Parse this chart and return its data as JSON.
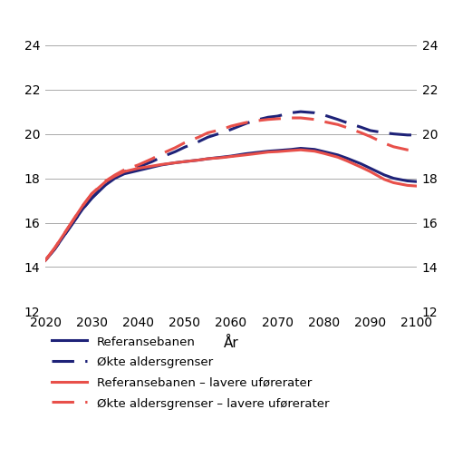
{
  "xlabel": "År",
  "xlim": [
    2020,
    2100
  ],
  "ylim": [
    12,
    25
  ],
  "yticks": [
    12,
    14,
    16,
    18,
    20,
    22,
    24
  ],
  "xticks": [
    2020,
    2030,
    2040,
    2050,
    2060,
    2070,
    2080,
    2090,
    2100
  ],
  "background_color": "#ffffff",
  "grid_color": "#aaaaaa",
  "series": {
    "ref": {
      "label": "Referansebanen",
      "color": "#1e2278",
      "linestyle": "solid",
      "linewidth": 2.2,
      "x": [
        2020,
        2022,
        2025,
        2028,
        2030,
        2033,
        2035,
        2037,
        2040,
        2043,
        2045,
        2048,
        2050,
        2053,
        2055,
        2058,
        2060,
        2063,
        2065,
        2068,
        2070,
        2073,
        2075,
        2078,
        2080,
        2083,
        2085,
        2088,
        2090,
        2093,
        2095,
        2098,
        2100
      ],
      "y": [
        14.3,
        14.8,
        15.7,
        16.6,
        17.1,
        17.7,
        18.0,
        18.2,
        18.35,
        18.5,
        18.6,
        18.7,
        18.75,
        18.82,
        18.88,
        18.95,
        19.0,
        19.1,
        19.15,
        19.22,
        19.25,
        19.3,
        19.35,
        19.3,
        19.2,
        19.05,
        18.9,
        18.65,
        18.45,
        18.15,
        18.0,
        17.88,
        17.85
      ]
    },
    "okte": {
      "label": "Økte aldersgrenser",
      "color": "#1e2278",
      "linestyle": "dashed",
      "linewidth": 2.2,
      "x": [
        2020,
        2022,
        2025,
        2028,
        2030,
        2033,
        2035,
        2037,
        2040,
        2043,
        2045,
        2048,
        2050,
        2053,
        2055,
        2058,
        2060,
        2063,
        2065,
        2068,
        2070,
        2073,
        2075,
        2078,
        2080,
        2083,
        2085,
        2088,
        2090,
        2093,
        2095,
        2098,
        2100
      ],
      "y": [
        14.3,
        14.8,
        15.7,
        16.6,
        17.1,
        17.75,
        18.05,
        18.3,
        18.5,
        18.75,
        18.95,
        19.2,
        19.4,
        19.65,
        19.85,
        20.05,
        20.2,
        20.45,
        20.6,
        20.75,
        20.8,
        20.95,
        21.0,
        20.95,
        20.85,
        20.65,
        20.5,
        20.3,
        20.15,
        20.05,
        20.0,
        19.95,
        19.95
      ]
    },
    "ref_lavere": {
      "label": "Referansebanen – lavere uførerater",
      "color": "#e8504a",
      "linestyle": "solid",
      "linewidth": 2.2,
      "x": [
        2020,
        2022,
        2025,
        2028,
        2030,
        2033,
        2035,
        2037,
        2040,
        2043,
        2045,
        2048,
        2050,
        2053,
        2055,
        2058,
        2060,
        2063,
        2065,
        2068,
        2070,
        2073,
        2075,
        2078,
        2080,
        2083,
        2085,
        2088,
        2090,
        2093,
        2095,
        2098,
        2100
      ],
      "y": [
        14.3,
        14.85,
        15.8,
        16.75,
        17.3,
        17.85,
        18.1,
        18.3,
        18.45,
        18.55,
        18.62,
        18.7,
        18.75,
        18.82,
        18.88,
        18.93,
        18.98,
        19.05,
        19.1,
        19.18,
        19.2,
        19.25,
        19.28,
        19.22,
        19.12,
        18.95,
        18.78,
        18.5,
        18.3,
        17.95,
        17.8,
        17.68,
        17.65
      ]
    },
    "okte_lavere": {
      "label": "Økte aldersgrenser – lavere uførerater",
      "color": "#e8504a",
      "linestyle": "dashed",
      "linewidth": 2.2,
      "x": [
        2020,
        2022,
        2025,
        2028,
        2030,
        2033,
        2035,
        2037,
        2040,
        2043,
        2045,
        2048,
        2050,
        2053,
        2055,
        2058,
        2060,
        2063,
        2065,
        2068,
        2070,
        2073,
        2075,
        2078,
        2080,
        2083,
        2085,
        2088,
        2090,
        2093,
        2095,
        2098,
        2100
      ],
      "y": [
        14.3,
        14.85,
        15.8,
        16.75,
        17.3,
        17.88,
        18.15,
        18.38,
        18.6,
        18.88,
        19.1,
        19.38,
        19.6,
        19.85,
        20.05,
        20.2,
        20.35,
        20.5,
        20.58,
        20.65,
        20.68,
        20.72,
        20.72,
        20.65,
        20.55,
        20.42,
        20.28,
        20.05,
        19.88,
        19.58,
        19.42,
        19.28,
        19.22
      ]
    }
  },
  "legend_fontsize": 9.5,
  "tick_fontsize": 10,
  "xlabel_fontsize": 11,
  "dash_pattern": [
    8,
    4
  ]
}
